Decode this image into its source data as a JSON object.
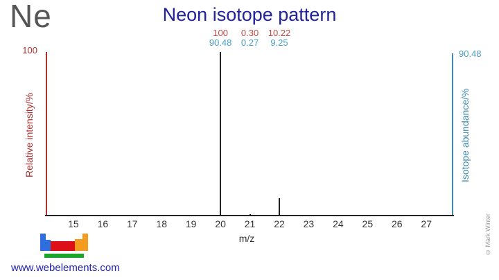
{
  "element_symbol": "Ne",
  "title": "Neon isotope pattern",
  "watermark_url": "www.webelements.com",
  "copyright": "© Mark Winter",
  "colors": {
    "title": "#22229a",
    "element_symbol": "#555555",
    "intensity_axis_red": "#b03030",
    "intensity_labels_red": "#c04a45",
    "abundance_axis_blue": "#4189ad",
    "abundance_labels_blue": "#4aa0c2",
    "baseline_and_peaks": "#222222",
    "logo_blue": "#2e6fdd",
    "logo_red": "#dd0f17",
    "logo_orange": "#f39c1f",
    "logo_green": "#1ca52b"
  },
  "chart_data": {
    "type": "bar",
    "title": "Neon isotope pattern",
    "xlabel": "m/z",
    "ylabel_left": "Relative intensity/%",
    "ylabel_right": "Isotope abundance/%",
    "left_axis_max_label": "100",
    "right_axis_max_label": "90.48",
    "xlim": [
      14.06,
      27.89
    ],
    "ylim_left": [
      0,
      100
    ],
    "ylim_right": [
      0,
      90.48
    ],
    "x_ticks": [
      15,
      16,
      17,
      18,
      19,
      20,
      21,
      22,
      23,
      24,
      25,
      26,
      27
    ],
    "grid": false,
    "peaks": [
      {
        "mz": 20,
        "relative_intensity": 100,
        "isotope_abundance": 90.48,
        "intensity_label": "100",
        "abundance_label": "90.48"
      },
      {
        "mz": 21,
        "relative_intensity": 0.3,
        "isotope_abundance": 0.27,
        "intensity_label": "0.30",
        "abundance_label": "0.27"
      },
      {
        "mz": 22,
        "relative_intensity": 10.22,
        "isotope_abundance": 9.25,
        "intensity_label": "10.22",
        "abundance_label": "9.25"
      }
    ]
  }
}
